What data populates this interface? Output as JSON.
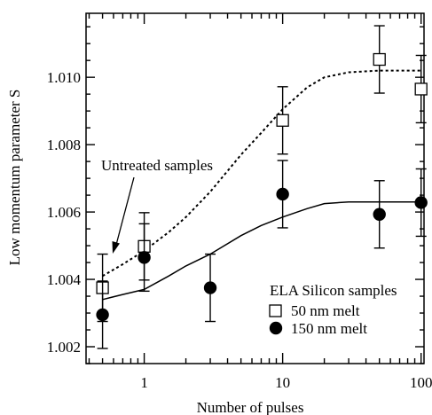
{
  "chart_data": {
    "type": "scatter",
    "xlabel": "Number of pulses",
    "ylabel": "Low momentum parameter S",
    "x_scale": "log",
    "xlim": [
      0.38,
      105
    ],
    "ylim": [
      1.0015,
      1.0119
    ],
    "x_ticks": [
      1,
      10,
      100
    ],
    "x_tick_labels": [
      "1",
      "10",
      "100"
    ],
    "y_ticks": [
      1.002,
      1.004,
      1.006,
      1.008,
      1.01
    ],
    "y_tick_labels": [
      "1.002",
      "1.004",
      "1.006",
      "1.008",
      "1.010"
    ],
    "grid": false,
    "legend": {
      "title": "ELA Silicon samples",
      "position": "bottom-right",
      "entries": [
        "50 nm melt",
        "150 nm melt"
      ]
    },
    "annotations": [
      {
        "text": "Untreated samples",
        "points_to_x": 0.52,
        "points_to_y": 1.0042
      }
    ],
    "series": [
      {
        "name": "50 nm melt",
        "marker": "open-square",
        "color": "#000000",
        "points": [
          {
            "x": 0.5,
            "y": 1.00375,
            "err": 0.001
          },
          {
            "x": 1,
            "y": 1.00498,
            "err": 0.001
          },
          {
            "x": 10,
            "y": 1.00872,
            "err": 0.001
          },
          {
            "x": 50,
            "y": 1.01053,
            "err": 0.001
          },
          {
            "x": 100,
            "y": 1.00965,
            "err": 0.001
          }
        ]
      },
      {
        "name": "150 nm melt",
        "marker": "filled-circle",
        "color": "#000000",
        "points": [
          {
            "x": 0.5,
            "y": 1.00295,
            "err": 0.001
          },
          {
            "x": 1,
            "y": 1.00465,
            "err": 0.001
          },
          {
            "x": 3,
            "y": 1.00375,
            "err": 0.001
          },
          {
            "x": 10,
            "y": 1.00653,
            "err": 0.001
          },
          {
            "x": 50,
            "y": 1.00593,
            "err": 0.001
          },
          {
            "x": 100,
            "y": 1.00628,
            "err": 0.001
          }
        ]
      }
    ],
    "fit_curves": [
      {
        "for": "50 nm melt",
        "style": "dotted",
        "points": [
          [
            0.5,
            1.0041
          ],
          [
            0.7,
            1.00445
          ],
          [
            1,
            1.00485
          ],
          [
            1.5,
            1.0054
          ],
          [
            2,
            1.00585
          ],
          [
            3,
            1.0066
          ],
          [
            5,
            1.0077
          ],
          [
            7,
            1.00835
          ],
          [
            10,
            1.00905
          ],
          [
            15,
            1.0097
          ],
          [
            20,
            1.01
          ],
          [
            30,
            1.01015
          ],
          [
            50,
            1.0102
          ],
          [
            100,
            1.0102
          ]
        ]
      },
      {
        "for": "150 nm melt",
        "style": "solid",
        "points": [
          [
            0.5,
            1.0034
          ],
          [
            0.7,
            1.00355
          ],
          [
            1,
            1.0037
          ],
          [
            1.5,
            1.0041
          ],
          [
            2,
            1.0044
          ],
          [
            3,
            1.00475
          ],
          [
            5,
            1.0053
          ],
          [
            7,
            1.0056
          ],
          [
            10,
            1.00585
          ],
          [
            15,
            1.0061
          ],
          [
            20,
            1.00625
          ],
          [
            30,
            1.0063
          ],
          [
            50,
            1.0063
          ],
          [
            100,
            1.0063
          ]
        ]
      }
    ]
  }
}
